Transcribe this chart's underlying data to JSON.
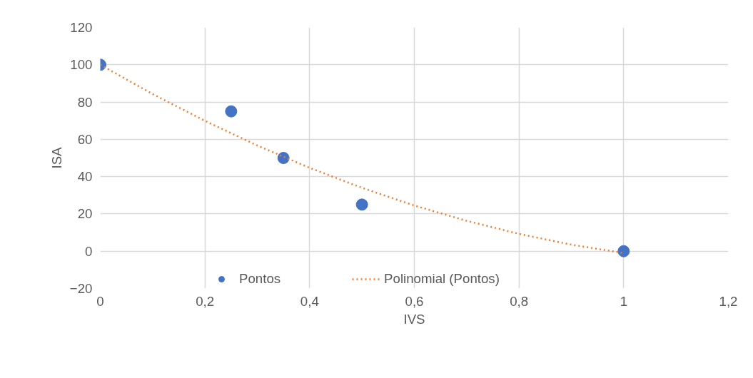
{
  "chart_data": {
    "type": "scatter",
    "xlabel": "IVS",
    "ylabel": "ISA",
    "xlim": [
      0,
      1.2
    ],
    "ylim": [
      -20,
      120
    ],
    "xticks": [
      0,
      {
        "value": 0.2,
        "label": "0,2"
      },
      {
        "value": 0.4,
        "label": "0,4"
      },
      {
        "value": 0.6,
        "label": "0,6"
      },
      {
        "value": 0.8,
        "label": "0,8"
      },
      1,
      {
        "value": 1.2,
        "label": "1,2"
      }
    ],
    "yticks": [
      -20,
      0,
      20,
      40,
      60,
      80,
      100,
      120
    ],
    "grid": true,
    "legend": "bottom",
    "marker": "circle",
    "series": [
      {
        "name": "Pontos",
        "color": "#4472c4",
        "x": [
          0,
          0.25,
          0.35,
          0.5,
          1
        ],
        "values": [
          100,
          75,
          50,
          25,
          0
        ]
      },
      {
        "name": "Polinomial (Pontos)",
        "type": "line",
        "line_style": "dotted",
        "marker": "none",
        "color": "#ed7d31",
        "x": [
          0,
          0.1,
          0.2,
          0.3,
          0.4,
          0.5,
          0.6,
          0.7,
          0.8,
          0.9,
          1
        ],
        "values": [
          100,
          84.3,
          69.9,
          56.7,
          44.7,
          34,
          24.5,
          16.3,
          9.3,
          3.5,
          -1
        ]
      }
    ]
  }
}
